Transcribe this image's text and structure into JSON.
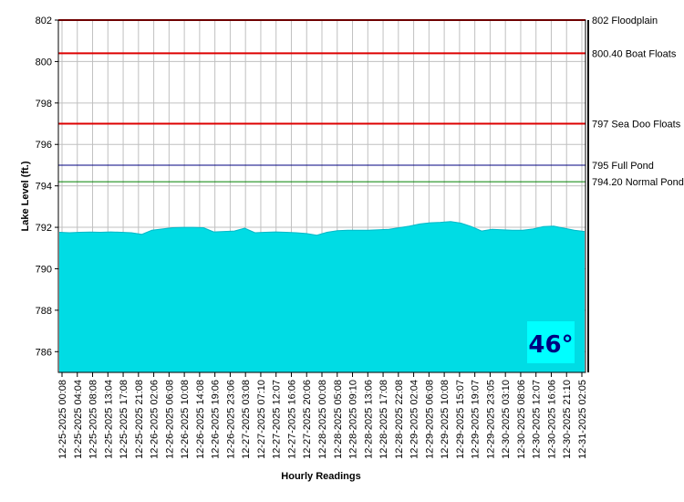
{
  "chart_data": {
    "type": "area",
    "xlabel": "Hourly Readings",
    "ylabel": "Lake Level (ft.)",
    "ylim": [
      785,
      802
    ],
    "y_ticks": [
      786,
      788,
      790,
      792,
      794,
      796,
      798,
      800,
      802
    ],
    "grid": true,
    "x_tick_labels": [
      "12-25-2025 00:08",
      "12-25-2025 04:04",
      "12-25-2025 08:08",
      "12-25-2025 13:04",
      "12-25-2025 17:08",
      "12-25-2025 21:08",
      "12-26-2025 02:06",
      "12-26-2025 06:08",
      "12-26-2025 10:08",
      "12-26-2025 14:08",
      "12-26-2025 19:06",
      "12-26-2025 23:06",
      "12-27-2025 03:08",
      "12-27-2025 07:10",
      "12-27-2025 12:07",
      "12-27-2025 16:06",
      "12-27-2025 20:06",
      "12-28-2025 00:08",
      "12-28-2025 05:08",
      "12-28-2025 09:10",
      "12-28-2025 13:06",
      "12-28-2025 17:08",
      "12-28-2025 22:08",
      "12-29-2025 02:04",
      "12-29-2025 06:08",
      "12-29-2025 10:08",
      "12-29-2025 15:07",
      "12-29-2025 19:07",
      "12-29-2025 23:05",
      "12-30-2025 03:10",
      "12-30-2025 08:06",
      "12-30-2025 12:07",
      "12-30-2025 16:06",
      "12-30-2025 21:10",
      "12-31-2025 02:05"
    ],
    "values": [
      791.76,
      791.74,
      791.76,
      791.77,
      791.76,
      791.78,
      791.76,
      791.74,
      791.66,
      791.86,
      791.92,
      791.98,
      792.0,
      792.0,
      791.98,
      791.78,
      791.8,
      791.82,
      791.96,
      791.74,
      791.76,
      791.78,
      791.76,
      791.74,
      791.7,
      791.62,
      791.76,
      791.84,
      791.86,
      791.86,
      791.86,
      791.88,
      791.9,
      791.98,
      792.06,
      792.16,
      792.22,
      792.24,
      792.28,
      792.2,
      792.04,
      791.82,
      791.9,
      791.88,
      791.86,
      791.86,
      791.92,
      792.04,
      792.06,
      791.96,
      791.86,
      791.8
    ],
    "reference_lines": [
      {
        "value": 802,
        "label": "802 Floodplain",
        "color": "#dd0000"
      },
      {
        "value": 800.4,
        "label": "800.40 Boat Floats",
        "color": "#dd0000"
      },
      {
        "value": 797,
        "label": "797 Sea Doo Floats",
        "color": "#dd0000"
      },
      {
        "value": 795,
        "label": "795 Full Pond",
        "color": "#000080"
      },
      {
        "value": 794.2,
        "label": "794.20 Normal Pond",
        "color": "#008000"
      }
    ],
    "fill_color": "#00e5ee",
    "temperature": "46°"
  }
}
